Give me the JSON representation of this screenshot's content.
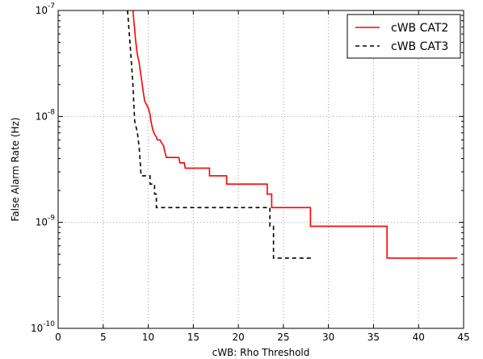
{
  "chart_data": {
    "type": "line",
    "xlabel": "cWB: Rho Threshold",
    "ylabel": "False Alarm Rate (Hz)",
    "xlim": [
      0,
      45
    ],
    "ylim": [
      1e-10,
      1e-07
    ],
    "yscale": "log",
    "grid": true,
    "legend_position": "top-right",
    "x_ticks": [
      0,
      5,
      10,
      15,
      20,
      25,
      30,
      35,
      40,
      45
    ],
    "y_ticks": [
      {
        "value": 1e-10,
        "mantissa": "10",
        "exp": "-10"
      },
      {
        "value": 1e-09,
        "mantissa": "10",
        "exp": "-9"
      },
      {
        "value": 1e-08,
        "mantissa": "10",
        "exp": "-8"
      },
      {
        "value": 1e-07,
        "mantissa": "10",
        "exp": "-7"
      }
    ],
    "series": [
      {
        "name": "cWB CAT2",
        "color": "#ff0000",
        "style": "solid",
        "points": [
          [
            8.3,
            1e-07
          ],
          [
            8.4,
            8e-08
          ],
          [
            8.5,
            6.5e-08
          ],
          [
            8.6,
            5.2e-08
          ],
          [
            8.7,
            4.4e-08
          ],
          [
            8.8,
            3.8e-08
          ],
          [
            9.0,
            3.2e-08
          ],
          [
            9.1,
            2.7e-08
          ],
          [
            9.2,
            2.4e-08
          ],
          [
            9.3,
            2.1e-08
          ],
          [
            9.4,
            1.8e-08
          ],
          [
            9.6,
            1.4e-08
          ],
          [
            9.8,
            1.3e-08
          ],
          [
            10.0,
            1.2e-08
          ],
          [
            10.2,
            1.05e-08
          ],
          [
            10.3,
            9e-09
          ],
          [
            10.5,
            7.5e-09
          ],
          [
            10.7,
            6.8e-09
          ],
          [
            10.9,
            6.4e-09
          ],
          [
            11.0,
            6e-09
          ],
          [
            11.3,
            6e-09
          ],
          [
            11.5,
            5.6e-09
          ],
          [
            11.7,
            5.3e-09
          ],
          [
            11.8,
            4.8e-09
          ],
          [
            12.0,
            4.1e-09
          ],
          [
            13.4,
            4.1e-09
          ],
          [
            13.5,
            3.65e-09
          ],
          [
            14.0,
            3.65e-09
          ],
          [
            14.1,
            3.25e-09
          ],
          [
            16.8,
            3.25e-09
          ],
          [
            16.8,
            2.75e-09
          ],
          [
            18.7,
            2.75e-09
          ],
          [
            18.7,
            2.3e-09
          ],
          [
            23.2,
            2.3e-09
          ],
          [
            23.2,
            1.85e-09
          ],
          [
            23.7,
            1.85e-09
          ],
          [
            23.7,
            1.38e-09
          ],
          [
            28.0,
            1.38e-09
          ],
          [
            28.0,
            9.2e-10
          ],
          [
            36.5,
            9.2e-10
          ],
          [
            36.5,
            4.6e-10
          ],
          [
            44.3,
            4.6e-10
          ]
        ]
      },
      {
        "name": "cWB CAT3",
        "color": "#000000",
        "style": "dashed",
        "points": [
          [
            7.7,
            1e-07
          ],
          [
            7.9,
            6e-08
          ],
          [
            8.1,
            3.5e-08
          ],
          [
            8.3,
            2e-08
          ],
          [
            8.4,
            1.3e-08
          ],
          [
            8.5,
            9e-09
          ],
          [
            8.8,
            7e-09
          ],
          [
            9.0,
            5e-09
          ],
          [
            9.1,
            3.8e-09
          ],
          [
            9.2,
            2.75e-09
          ],
          [
            10.2,
            2.75e-09
          ],
          [
            10.2,
            2.3e-09
          ],
          [
            10.7,
            2.3e-09
          ],
          [
            10.7,
            1.85e-09
          ],
          [
            10.9,
            1.85e-09
          ],
          [
            10.9,
            1.38e-09
          ],
          [
            23.5,
            1.38e-09
          ],
          [
            23.5,
            9.2e-10
          ],
          [
            23.9,
            9.2e-10
          ],
          [
            23.9,
            4.6e-10
          ],
          [
            28.1,
            4.6e-10
          ]
        ]
      }
    ]
  }
}
